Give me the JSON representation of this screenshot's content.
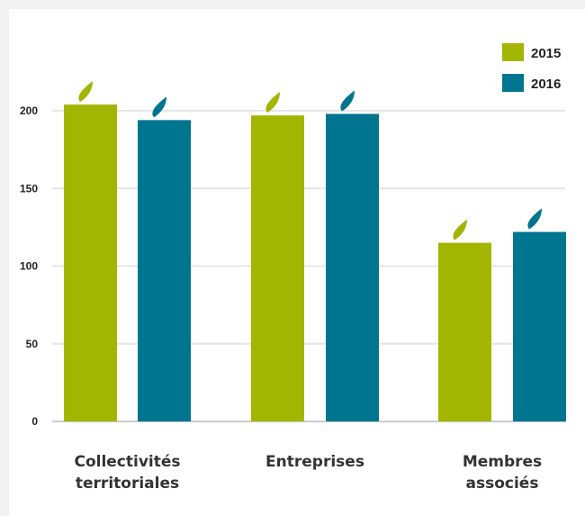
{
  "chart_data": {
    "type": "bar",
    "categories": [
      [
        "Collectivités",
        "territoriales"
      ],
      [
        "Entreprises"
      ],
      [
        "Membres",
        "associés"
      ]
    ],
    "series": [
      {
        "name": "2015",
        "color": "#a2b500",
        "values": [
          204,
          197,
          115
        ]
      },
      {
        "name": "2016",
        "color": "#00758f",
        "values": [
          194,
          198,
          122
        ]
      }
    ],
    "y_ticks": [
      0,
      50,
      100,
      150,
      200
    ],
    "ylim": [
      0,
      200
    ],
    "grid": true,
    "legend": "top-right",
    "title": "",
    "xlabel": "",
    "ylabel": ""
  }
}
